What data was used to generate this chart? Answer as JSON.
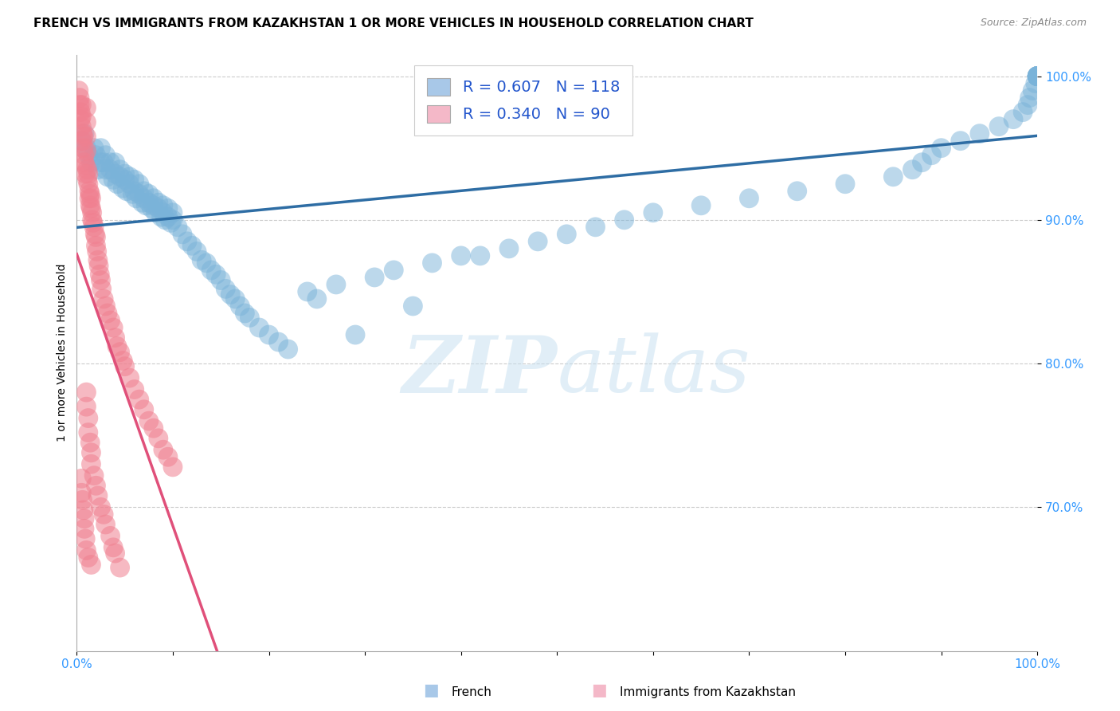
{
  "title": "FRENCH VS IMMIGRANTS FROM KAZAKHSTAN 1 OR MORE VEHICLES IN HOUSEHOLD CORRELATION CHART",
  "source": "Source: ZipAtlas.com",
  "ylabel": "1 or more Vehicles in Household",
  "xlim": [
    0.0,
    1.0
  ],
  "ylim": [
    0.6,
    1.015
  ],
  "yticks": [
    0.7,
    0.8,
    0.9,
    1.0
  ],
  "ytick_labels": [
    "70.0%",
    "80.0%",
    "90.0%",
    "100.0%"
  ],
  "xtick_labels": [
    "0.0%",
    "100.0%"
  ],
  "scatter_blue_color": "#7ab3d9",
  "scatter_pink_color": "#f08090",
  "trendline_blue_color": "#2e6da4",
  "trendline_pink_color": "#e0507a",
  "watermark_zip": "ZIP",
  "watermark_atlas": "atlas",
  "title_fontsize": 11,
  "source_fontsize": 9,
  "legend_label1": "R = 0.607   N = 118",
  "legend_label2": "R = 0.340   N = 90",
  "legend_color1": "#a8c8e8",
  "legend_color2": "#f4b8c8",
  "bottom_legend1": "French",
  "bottom_legend2": "Immigrants from Kazakhstan",
  "blue_x": [
    0.005,
    0.008,
    0.01,
    0.012,
    0.015,
    0.018,
    0.02,
    0.022,
    0.025,
    0.025,
    0.028,
    0.03,
    0.03,
    0.032,
    0.035,
    0.035,
    0.038,
    0.04,
    0.04,
    0.042,
    0.045,
    0.045,
    0.048,
    0.05,
    0.05,
    0.052,
    0.055,
    0.055,
    0.058,
    0.06,
    0.06,
    0.062,
    0.065,
    0.065,
    0.068,
    0.07,
    0.07,
    0.072,
    0.075,
    0.075,
    0.078,
    0.08,
    0.08,
    0.082,
    0.085,
    0.085,
    0.088,
    0.09,
    0.09,
    0.092,
    0.095,
    0.095,
    0.098,
    0.1,
    0.1,
    0.105,
    0.11,
    0.115,
    0.12,
    0.125,
    0.13,
    0.135,
    0.14,
    0.145,
    0.15,
    0.155,
    0.16,
    0.165,
    0.17,
    0.175,
    0.18,
    0.19,
    0.2,
    0.21,
    0.22,
    0.24,
    0.25,
    0.27,
    0.29,
    0.31,
    0.33,
    0.35,
    0.37,
    0.4,
    0.42,
    0.45,
    0.48,
    0.51,
    0.54,
    0.57,
    0.6,
    0.65,
    0.7,
    0.75,
    0.8,
    0.85,
    0.87,
    0.88,
    0.89,
    0.9,
    0.92,
    0.94,
    0.96,
    0.975,
    0.985,
    0.99,
    0.992,
    0.995,
    0.998,
    1.0,
    1.0,
    1.0,
    1.0,
    1.0,
    1.0,
    1.0,
    1.0,
    1.0
  ],
  "blue_y": [
    0.955,
    0.96,
    0.95,
    0.945,
    0.94,
    0.95,
    0.945,
    0.935,
    0.94,
    0.95,
    0.94,
    0.935,
    0.945,
    0.93,
    0.935,
    0.94,
    0.928,
    0.932,
    0.94,
    0.925,
    0.93,
    0.935,
    0.922,
    0.928,
    0.932,
    0.92,
    0.925,
    0.93,
    0.918,
    0.92,
    0.928,
    0.915,
    0.918,
    0.925,
    0.912,
    0.915,
    0.92,
    0.91,
    0.912,
    0.918,
    0.908,
    0.91,
    0.915,
    0.905,
    0.908,
    0.912,
    0.902,
    0.905,
    0.91,
    0.9,
    0.902,
    0.908,
    0.898,
    0.9,
    0.905,
    0.895,
    0.89,
    0.885,
    0.882,
    0.878,
    0.872,
    0.87,
    0.865,
    0.862,
    0.858,
    0.852,
    0.848,
    0.845,
    0.84,
    0.835,
    0.832,
    0.825,
    0.82,
    0.815,
    0.81,
    0.85,
    0.845,
    0.855,
    0.82,
    0.86,
    0.865,
    0.84,
    0.87,
    0.875,
    0.875,
    0.88,
    0.885,
    0.89,
    0.895,
    0.9,
    0.905,
    0.91,
    0.915,
    0.92,
    0.925,
    0.93,
    0.935,
    0.94,
    0.945,
    0.95,
    0.955,
    0.96,
    0.965,
    0.97,
    0.975,
    0.98,
    0.985,
    0.99,
    0.995,
    1.0,
    1.0,
    1.0,
    1.0,
    1.0,
    1.0,
    1.0,
    1.0,
    1.0
  ],
  "pink_x": [
    0.002,
    0.003,
    0.003,
    0.004,
    0.004,
    0.005,
    0.005,
    0.005,
    0.006,
    0.006,
    0.007,
    0.007,
    0.008,
    0.008,
    0.009,
    0.009,
    0.01,
    0.01,
    0.01,
    0.01,
    0.011,
    0.011,
    0.012,
    0.012,
    0.013,
    0.013,
    0.014,
    0.014,
    0.015,
    0.015,
    0.016,
    0.016,
    0.017,
    0.018,
    0.019,
    0.02,
    0.02,
    0.021,
    0.022,
    0.023,
    0.024,
    0.025,
    0.026,
    0.028,
    0.03,
    0.032,
    0.035,
    0.038,
    0.04,
    0.042,
    0.045,
    0.048,
    0.05,
    0.055,
    0.06,
    0.065,
    0.07,
    0.075,
    0.08,
    0.085,
    0.09,
    0.095,
    0.1,
    0.01,
    0.01,
    0.012,
    0.012,
    0.014,
    0.015,
    0.015,
    0.018,
    0.02,
    0.022,
    0.025,
    0.028,
    0.03,
    0.035,
    0.038,
    0.04,
    0.045,
    0.005,
    0.005,
    0.006,
    0.007,
    0.008,
    0.008,
    0.009,
    0.01,
    0.012,
    0.015
  ],
  "pink_y": [
    0.99,
    0.985,
    0.98,
    0.975,
    0.97,
    0.98,
    0.972,
    0.965,
    0.96,
    0.955,
    0.958,
    0.95,
    0.945,
    0.94,
    0.938,
    0.932,
    0.978,
    0.968,
    0.958,
    0.948,
    0.935,
    0.928,
    0.932,
    0.925,
    0.92,
    0.915,
    0.918,
    0.91,
    0.915,
    0.908,
    0.905,
    0.9,
    0.898,
    0.895,
    0.89,
    0.888,
    0.882,
    0.878,
    0.872,
    0.868,
    0.862,
    0.858,
    0.852,
    0.845,
    0.84,
    0.835,
    0.83,
    0.825,
    0.818,
    0.812,
    0.808,
    0.802,
    0.798,
    0.79,
    0.782,
    0.775,
    0.768,
    0.76,
    0.755,
    0.748,
    0.74,
    0.735,
    0.728,
    0.78,
    0.77,
    0.762,
    0.752,
    0.745,
    0.738,
    0.73,
    0.722,
    0.715,
    0.708,
    0.7,
    0.695,
    0.688,
    0.68,
    0.672,
    0.668,
    0.658,
    0.72,
    0.71,
    0.705,
    0.698,
    0.692,
    0.685,
    0.678,
    0.67,
    0.665,
    0.66
  ]
}
